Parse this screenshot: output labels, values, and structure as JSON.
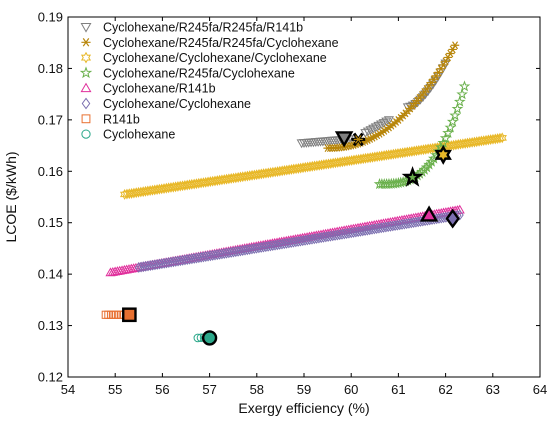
{
  "chart_data": {
    "type": "scatter",
    "xlabel": "Exergy efficiency (%)",
    "ylabel": "LCOE ($/kWh)",
    "xlim": [
      54,
      64
    ],
    "ylim": [
      0.12,
      0.19
    ],
    "xticks": [
      54,
      55,
      56,
      57,
      58,
      59,
      60,
      61,
      62,
      63,
      64
    ],
    "yticks": [
      0.12,
      0.13,
      0.14,
      0.15,
      0.16,
      0.17,
      0.18,
      0.19
    ],
    "grid": false,
    "legend_position": "top-left",
    "series": [
      {
        "name": "Cyclohexane/R245fa/R245fa/R141b",
        "marker": "triangle-down",
        "color": "#7f7f7f",
        "segments": [
          {
            "x_start": 58.95,
            "x_end": 60.0,
            "y_start": 0.1655,
            "y_end": 0.1663,
            "k": 1.0
          },
          {
            "x_start": 60.3,
            "x_end": 60.8,
            "y_start": 0.1675,
            "y_end": 0.17,
            "k": 1.0
          },
          {
            "x_start": 61.2,
            "x_end": 62.0,
            "y_start": 0.1725,
            "y_end": 0.181,
            "k": 1.6
          }
        ],
        "optimal": {
          "x": 59.85,
          "y": 0.1665
        }
      },
      {
        "name": "Cyclohexane/R245fa/R245fa/Cyclohexane",
        "marker": "asterisk",
        "color": "#b8860b",
        "segments": [
          {
            "x_start": 59.5,
            "x_end": 62.2,
            "y_start": 0.1645,
            "y_end": 0.1845,
            "k": 2.2
          }
        ],
        "optimal": {
          "x": 60.15,
          "y": 0.1662
        }
      },
      {
        "name": "Cyclohexane/Cyclohexane/Cyclohexane",
        "marker": "hexagram",
        "color": "#e8b828",
        "segments": [
          {
            "x_start": 55.2,
            "x_end": 63.2,
            "y_start": 0.1555,
            "y_end": 0.1665,
            "k": 1.0
          }
        ],
        "optimal": {
          "x": 61.95,
          "y": 0.1632
        }
      },
      {
        "name": "Cyclohexane/R245fa/Cyclohexane",
        "marker": "pentagram",
        "color": "#6ab04c",
        "segments": [
          {
            "x_start": 60.6,
            "x_end": 62.4,
            "y_start": 0.1575,
            "y_end": 0.1765,
            "k": 3.0
          }
        ],
        "optimal": {
          "x": 61.3,
          "y": 0.1588
        }
      },
      {
        "name": "Cyclohexane/R141b",
        "marker": "triangle-up",
        "color": "#e0309c",
        "segments": [
          {
            "x_start": 54.9,
            "x_end": 62.3,
            "y_start": 0.1403,
            "y_end": 0.1525,
            "k": 1.0
          }
        ],
        "optimal": {
          "x": 61.65,
          "y": 0.1515
        }
      },
      {
        "name": "Cyclohexane/Cyclohexane",
        "marker": "diamond",
        "color": "#7b6fb0",
        "segments": [
          {
            "x_start": 55.5,
            "x_end": 62.3,
            "y_start": 0.1413,
            "y_end": 0.1515,
            "k": 1.0
          }
        ],
        "optimal": {
          "x": 62.15,
          "y": 0.1508
        }
      },
      {
        "name": "R141b",
        "marker": "square",
        "color": "#e87030",
        "segments": [
          {
            "x_start": 54.8,
            "x_end": 55.3,
            "y_start": 0.1321,
            "y_end": 0.1321,
            "k": 1.0
          }
        ],
        "optimal": {
          "x": 55.3,
          "y": 0.1321
        }
      },
      {
        "name": "Cyclohexane",
        "marker": "circle",
        "color": "#2ba88a",
        "segments": [
          {
            "x_start": 56.75,
            "x_end": 56.95,
            "y_start": 0.1276,
            "y_end": 0.1277,
            "k": 1.0
          }
        ],
        "optimal": {
          "x": 57.0,
          "y": 0.1276
        }
      }
    ]
  }
}
